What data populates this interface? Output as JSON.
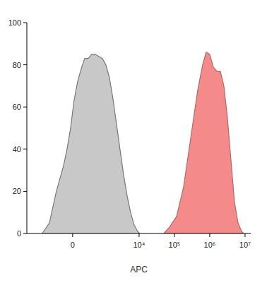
{
  "chart_data": {
    "type": "area",
    "x_label": "APC",
    "log": "x",
    "xlim": [
      -2600,
      14500000
    ],
    "xticks": [
      0,
      {
        "value": 10000,
        "label": "10⁴"
      },
      {
        "value": 100000,
        "label": "10⁵"
      },
      {
        "value": 1000000,
        "label": "10⁶"
      },
      {
        "value": 10000000,
        "label": "10⁷"
      }
    ],
    "ylim": [
      0,
      100
    ],
    "yticks": [
      0,
      20,
      40,
      60,
      80,
      100
    ],
    "series": [
      {
        "color": "#c8c8c8",
        "x": [
          -940,
          -570,
          -335,
          -167,
          -99,
          -36,
          24,
          86,
          153,
          228,
          315,
          419,
          545,
          695,
          891,
          1131,
          1431,
          1807,
          2280,
          2872,
          3618,
          4558,
          5733,
          7224,
          9100,
          10440
        ],
        "values": [
          0,
          5,
          20,
          32,
          40,
          50,
          63,
          72,
          78,
          83,
          83,
          85,
          85,
          84,
          83,
          80,
          74,
          64,
          52,
          40,
          28,
          18,
          10,
          4,
          1,
          0
        ]
      },
      {
        "color": "#f58a8a",
        "x": [
          50050,
          72300,
          114700,
          181800,
          288300,
          456800,
          630400,
          794000,
          999000,
          1258000,
          1585000,
          1995000,
          2511000,
          3161000,
          3982000,
          5011000,
          6309000,
          7946000,
          9123000
        ],
        "values": [
          0,
          3,
          8,
          22,
          45,
          68,
          80,
          86,
          85,
          79,
          77,
          77,
          70,
          55,
          35,
          15,
          5,
          1,
          0
        ]
      }
    ]
  }
}
